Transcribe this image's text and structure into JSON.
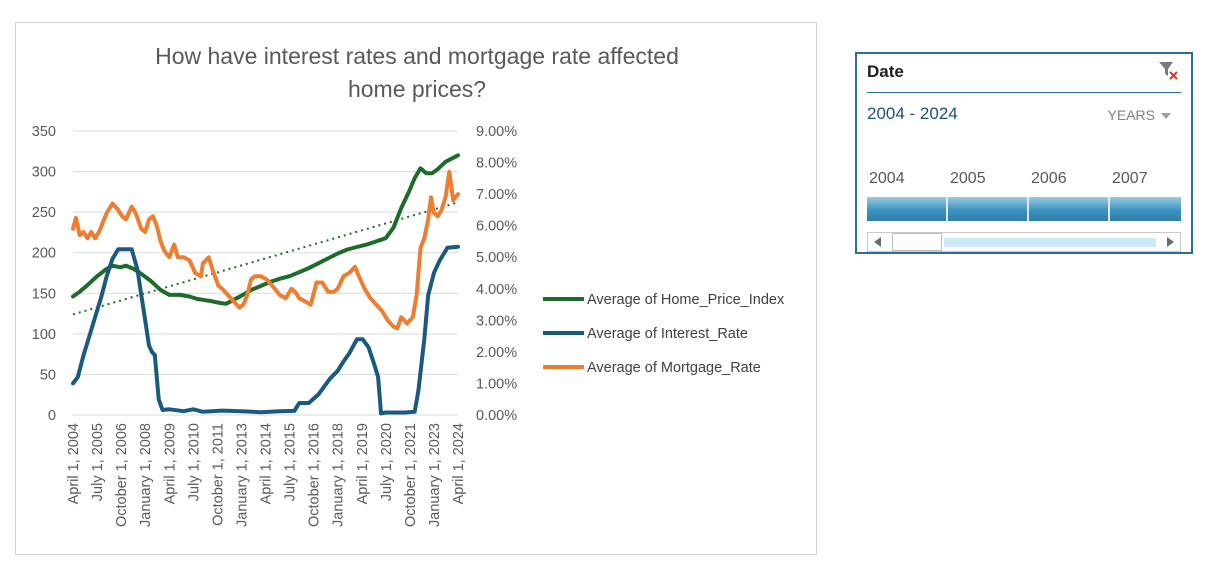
{
  "chart_data": {
    "type": "line",
    "title_line1": "How have interest rates and mortgage rate affected",
    "title_line2": "home prices?",
    "ylim_left": [
      0,
      350
    ],
    "ylim_right": [
      0,
      9
    ],
    "yticks_left": [
      "350",
      "300",
      "250",
      "200",
      "150",
      "100",
      "50",
      "0"
    ],
    "yticks_right": [
      "9.00%",
      "8.00%",
      "7.00%",
      "6.00%",
      "5.00%",
      "4.00%",
      "3.00%",
      "2.00%",
      "1.00%",
      "0.00%"
    ],
    "x_labels": [
      "April 1, 2004",
      "July 1, 2005",
      "October 1, 2006",
      "January 1, 2008",
      "April 1, 2009",
      "July 1, 2010",
      "October 1, 2011",
      "January 1, 2013",
      "April 1, 2014",
      "July 1, 2015",
      "October 1, 2016",
      "January 1, 2018",
      "April 1, 2019",
      "July 1, 2020",
      "October 1, 2021",
      "January 1, 2023",
      "April 1, 2024"
    ],
    "x_label_years": [
      2004.25,
      2005.5,
      2006.75,
      2008.0,
      2009.25,
      2010.5,
      2011.75,
      2013.0,
      2014.25,
      2015.5,
      2016.75,
      2018.0,
      2019.25,
      2020.5,
      2021.75,
      2023.0,
      2024.25
    ],
    "grid": true,
    "legend_position": "right",
    "trendline": {
      "series": "Average of Home_Price_Index",
      "type": "linear",
      "style": "dotted",
      "start": 124,
      "end": 262
    },
    "series": [
      {
        "name": "Average of Home_Price_Index",
        "axis": "left",
        "color": "#1e6b2c",
        "points": [
          [
            2004.25,
            146
          ],
          [
            2004.6,
            152
          ],
          [
            2005.0,
            160
          ],
          [
            2005.5,
            171
          ],
          [
            2006.0,
            180
          ],
          [
            2006.3,
            184
          ],
          [
            2006.7,
            182
          ],
          [
            2007.0,
            184
          ],
          [
            2007.4,
            180
          ],
          [
            2007.8,
            174
          ],
          [
            2008.3,
            165
          ],
          [
            2008.8,
            154
          ],
          [
            2009.25,
            148
          ],
          [
            2009.8,
            148
          ],
          [
            2010.3,
            146
          ],
          [
            2010.7,
            143
          ],
          [
            2011.0,
            142
          ],
          [
            2011.5,
            140
          ],
          [
            2011.9,
            138
          ],
          [
            2012.2,
            137
          ],
          [
            2012.6,
            142
          ],
          [
            2013.0,
            147
          ],
          [
            2013.5,
            154
          ],
          [
            2014.0,
            159
          ],
          [
            2014.5,
            164
          ],
          [
            2015.0,
            168
          ],
          [
            2015.5,
            171
          ],
          [
            2016.0,
            176
          ],
          [
            2016.5,
            181
          ],
          [
            2017.0,
            187
          ],
          [
            2017.5,
            193
          ],
          [
            2018.0,
            199
          ],
          [
            2018.5,
            204
          ],
          [
            2019.0,
            207
          ],
          [
            2019.5,
            210
          ],
          [
            2020.0,
            214
          ],
          [
            2020.5,
            218
          ],
          [
            2020.9,
            231
          ],
          [
            2021.3,
            255
          ],
          [
            2021.7,
            275
          ],
          [
            2022.0,
            292
          ],
          [
            2022.3,
            304
          ],
          [
            2022.6,
            298
          ],
          [
            2022.9,
            298
          ],
          [
            2023.2,
            303
          ],
          [
            2023.6,
            312
          ],
          [
            2024.0,
            317
          ],
          [
            2024.25,
            320
          ]
        ]
      },
      {
        "name": "Average of Interest_Rate",
        "axis": "right",
        "color": "#1b5a7f",
        "points": [
          [
            2004.25,
            1.0
          ],
          [
            2004.5,
            1.2
          ],
          [
            2004.8,
            1.9
          ],
          [
            2005.1,
            2.5
          ],
          [
            2005.4,
            3.1
          ],
          [
            2005.7,
            3.7
          ],
          [
            2006.0,
            4.4
          ],
          [
            2006.3,
            4.95
          ],
          [
            2006.6,
            5.25
          ],
          [
            2007.0,
            5.25
          ],
          [
            2007.3,
            5.25
          ],
          [
            2007.6,
            4.6
          ],
          [
            2007.8,
            3.8
          ],
          [
            2008.0,
            3.0
          ],
          [
            2008.2,
            2.2
          ],
          [
            2008.35,
            2.0
          ],
          [
            2008.5,
            1.9
          ],
          [
            2008.7,
            0.5
          ],
          [
            2008.9,
            0.16
          ],
          [
            2009.25,
            0.18
          ],
          [
            2010.0,
            0.12
          ],
          [
            2010.5,
            0.18
          ],
          [
            2011.0,
            0.1
          ],
          [
            2012.0,
            0.14
          ],
          [
            2013.0,
            0.12
          ],
          [
            2014.0,
            0.09
          ],
          [
            2015.0,
            0.12
          ],
          [
            2015.75,
            0.13
          ],
          [
            2016.0,
            0.38
          ],
          [
            2016.5,
            0.38
          ],
          [
            2017.0,
            0.65
          ],
          [
            2017.3,
            0.9
          ],
          [
            2017.6,
            1.15
          ],
          [
            2018.0,
            1.4
          ],
          [
            2018.3,
            1.7
          ],
          [
            2018.6,
            1.95
          ],
          [
            2019.0,
            2.4
          ],
          [
            2019.3,
            2.4
          ],
          [
            2019.6,
            2.15
          ],
          [
            2019.9,
            1.6
          ],
          [
            2020.1,
            1.2
          ],
          [
            2020.25,
            0.05
          ],
          [
            2020.5,
            0.08
          ],
          [
            2021.0,
            0.08
          ],
          [
            2021.5,
            0.08
          ],
          [
            2022.0,
            0.1
          ],
          [
            2022.2,
            0.8
          ],
          [
            2022.5,
            2.4
          ],
          [
            2022.7,
            3.8
          ],
          [
            2023.0,
            4.5
          ],
          [
            2023.3,
            4.9
          ],
          [
            2023.7,
            5.3
          ],
          [
            2024.25,
            5.33
          ]
        ]
      },
      {
        "name": "Average of Mortgage_Rate",
        "axis": "right",
        "color": "#ed7d31",
        "points": [
          [
            2004.25,
            5.9
          ],
          [
            2004.4,
            6.25
          ],
          [
            2004.6,
            5.7
          ],
          [
            2004.8,
            5.8
          ],
          [
            2005.0,
            5.6
          ],
          [
            2005.2,
            5.8
          ],
          [
            2005.4,
            5.6
          ],
          [
            2005.6,
            5.8
          ],
          [
            2005.8,
            6.1
          ],
          [
            2006.0,
            6.4
          ],
          [
            2006.3,
            6.7
          ],
          [
            2006.6,
            6.5
          ],
          [
            2006.8,
            6.3
          ],
          [
            2007.0,
            6.2
          ],
          [
            2007.3,
            6.6
          ],
          [
            2007.5,
            6.4
          ],
          [
            2007.8,
            5.9
          ],
          [
            2008.0,
            5.8
          ],
          [
            2008.2,
            6.2
          ],
          [
            2008.4,
            6.3
          ],
          [
            2008.6,
            6.0
          ],
          [
            2008.8,
            5.5
          ],
          [
            2009.0,
            5.2
          ],
          [
            2009.25,
            5.0
          ],
          [
            2009.5,
            5.4
          ],
          [
            2009.7,
            5.0
          ],
          [
            2010.0,
            5.0
          ],
          [
            2010.3,
            4.9
          ],
          [
            2010.6,
            4.5
          ],
          [
            2010.9,
            4.4
          ],
          [
            2011.0,
            4.8
          ],
          [
            2011.3,
            5.0
          ],
          [
            2011.5,
            4.6
          ],
          [
            2011.8,
            4.1
          ],
          [
            2012.0,
            4.0
          ],
          [
            2012.3,
            3.8
          ],
          [
            2012.6,
            3.6
          ],
          [
            2012.9,
            3.4
          ],
          [
            2013.1,
            3.5
          ],
          [
            2013.3,
            3.8
          ],
          [
            2013.5,
            4.3
          ],
          [
            2013.7,
            4.4
          ],
          [
            2014.0,
            4.4
          ],
          [
            2014.3,
            4.3
          ],
          [
            2014.6,
            4.1
          ],
          [
            2015.0,
            3.8
          ],
          [
            2015.3,
            3.7
          ],
          [
            2015.6,
            4.0
          ],
          [
            2015.8,
            3.9
          ],
          [
            2016.0,
            3.7
          ],
          [
            2016.3,
            3.6
          ],
          [
            2016.6,
            3.5
          ],
          [
            2016.9,
            4.2
          ],
          [
            2017.2,
            4.2
          ],
          [
            2017.5,
            3.9
          ],
          [
            2017.8,
            3.9
          ],
          [
            2018.0,
            4.0
          ],
          [
            2018.3,
            4.4
          ],
          [
            2018.6,
            4.5
          ],
          [
            2018.9,
            4.7
          ],
          [
            2019.1,
            4.4
          ],
          [
            2019.4,
            4.0
          ],
          [
            2019.7,
            3.7
          ],
          [
            2020.0,
            3.5
          ],
          [
            2020.3,
            3.3
          ],
          [
            2020.6,
            3.0
          ],
          [
            2020.9,
            2.8
          ],
          [
            2021.1,
            2.75
          ],
          [
            2021.3,
            3.1
          ],
          [
            2021.6,
            2.9
          ],
          [
            2021.9,
            3.1
          ],
          [
            2022.1,
            3.8
          ],
          [
            2022.3,
            5.3
          ],
          [
            2022.5,
            5.6
          ],
          [
            2022.7,
            6.2
          ],
          [
            2022.85,
            6.9
          ],
          [
            2023.0,
            6.4
          ],
          [
            2023.2,
            6.3
          ],
          [
            2023.4,
            6.5
          ],
          [
            2023.6,
            6.9
          ],
          [
            2023.8,
            7.7
          ],
          [
            2024.0,
            6.8
          ],
          [
            2024.25,
            7.0
          ]
        ]
      }
    ]
  },
  "slicer": {
    "header": "Date",
    "range_label": "2004 - 2024",
    "level_label": "YEARS",
    "years": [
      "2004",
      "2005",
      "2006",
      "2007"
    ],
    "clear_filter_icon": "clear-filter-icon"
  }
}
